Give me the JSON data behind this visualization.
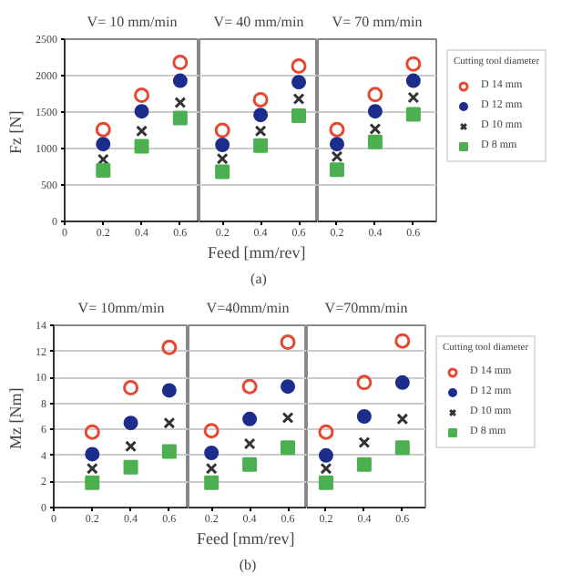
{
  "chart_data": [
    {
      "type": "scatter",
      "title": "V= 10 mm/min",
      "ylabel": "Fz  [N]",
      "grid": "y",
      "x": [
        0.2,
        0.4,
        0.6
      ],
      "xlim": [
        0,
        0.7
      ],
      "xticks": [
        0,
        0.2,
        0.4,
        0.6
      ],
      "ylim": [
        0,
        2500
      ],
      "yticks": [
        0,
        500,
        1000,
        1500,
        2000,
        2500
      ],
      "series": [
        {
          "color": "#e8472f",
          "marker": "circle_open",
          "values": [
            1260,
            1730,
            2180
          ]
        },
        {
          "color": "#1c2d8c",
          "marker": "circle",
          "values": [
            1060,
            1510,
            1930
          ]
        },
        {
          "color": "#333333",
          "marker": "cross",
          "values": [
            850,
            1240,
            1630
          ]
        },
        {
          "color": "#4caf50",
          "marker": "square",
          "values": [
            700,
            1030,
            1420
          ]
        }
      ]
    },
    {
      "type": "scatter",
      "title": "V= 40 mm/min",
      "xlabel": "Feed  [mm/rev]",
      "annotations": [
        "(a)"
      ],
      "grid": "y",
      "tick_labels": "x",
      "x": [
        0.2,
        0.4,
        0.6
      ],
      "xlim": [
        0.08,
        0.7
      ],
      "xticks": [
        0.2,
        0.4,
        0.6
      ],
      "ylim": [
        0,
        2500
      ],
      "yticks": [
        0,
        500,
        1000,
        1500,
        2000,
        2500
      ],
      "series": [
        {
          "color": "#e8472f",
          "marker": "circle_open",
          "values": [
            1250,
            1670,
            2130
          ]
        },
        {
          "color": "#1c2d8c",
          "marker": "circle",
          "values": [
            1050,
            1460,
            1910
          ]
        },
        {
          "color": "#333333",
          "marker": "cross",
          "values": [
            860,
            1240,
            1680
          ]
        },
        {
          "color": "#4caf50",
          "marker": "square",
          "values": [
            680,
            1040,
            1450
          ]
        }
      ]
    },
    {
      "type": "scatter",
      "title": "V= 70 mm/min",
      "legend_title": "Cutting tool diameter",
      "legend": "right",
      "grid": "y",
      "tick_labels": "x",
      "x": [
        0.2,
        0.4,
        0.6
      ],
      "xlim": [
        0.1,
        0.72
      ],
      "xticks": [
        0.2,
        0.4,
        0.6
      ],
      "ylim": [
        0,
        2500
      ],
      "yticks": [
        0,
        500,
        1000,
        1500,
        2000,
        2500
      ],
      "series": [
        {
          "name": "D 14 mm",
          "color": "#e8472f",
          "marker": "circle_open",
          "values": [
            1260,
            1740,
            2160
          ]
        },
        {
          "name": "D 12 mm",
          "color": "#1c2d8c",
          "marker": "circle",
          "values": [
            1060,
            1510,
            1930
          ]
        },
        {
          "name": "D 10 mm",
          "color": "#333333",
          "marker": "cross",
          "values": [
            890,
            1270,
            1700
          ]
        },
        {
          "name": "D 8 mm",
          "color": "#4caf50",
          "marker": "square",
          "values": [
            710,
            1090,
            1470
          ]
        }
      ]
    },
    {
      "type": "scatter",
      "title": "V= 10mm/min",
      "ylabel": "Mz  [Nm]",
      "grid": "y",
      "x": [
        0.2,
        0.4,
        0.6
      ],
      "xlim": [
        0,
        0.7
      ],
      "xticks": [
        0,
        0.2,
        0.4,
        0.6
      ],
      "ylim": [
        0,
        14
      ],
      "yticks": [
        0,
        2,
        4,
        6,
        8,
        10,
        12,
        14
      ],
      "series": [
        {
          "color": "#e8472f",
          "marker": "circle_open",
          "values": [
            5.8,
            9.2,
            12.3
          ]
        },
        {
          "color": "#1c2d8c",
          "marker": "circle",
          "values": [
            4.1,
            6.5,
            9.0
          ]
        },
        {
          "color": "#333333",
          "marker": "cross",
          "values": [
            3.0,
            4.7,
            6.5
          ]
        },
        {
          "color": "#4caf50",
          "marker": "square",
          "values": [
            1.9,
            3.1,
            4.3
          ]
        }
      ]
    },
    {
      "type": "scatter",
      "title": "V=40mm/min",
      "xlabel": "Feed  [mm/rev]",
      "annotations": [
        "(b)"
      ],
      "grid": "y",
      "tick_labels": "x",
      "x": [
        0.2,
        0.4,
        0.6
      ],
      "xlim": [
        0.08,
        0.7
      ],
      "xticks": [
        0.2,
        0.4,
        0.6
      ],
      "ylim": [
        0,
        14
      ],
      "yticks": [
        0,
        2,
        4,
        6,
        8,
        10,
        12,
        14
      ],
      "series": [
        {
          "color": "#e8472f",
          "marker": "circle_open",
          "values": [
            5.9,
            9.3,
            12.7
          ]
        },
        {
          "color": "#1c2d8c",
          "marker": "circle",
          "values": [
            4.2,
            6.8,
            9.3
          ]
        },
        {
          "color": "#333333",
          "marker": "cross",
          "values": [
            3.0,
            4.9,
            6.9
          ]
        },
        {
          "color": "#4caf50",
          "marker": "square",
          "values": [
            1.9,
            3.3,
            4.6
          ]
        }
      ]
    },
    {
      "type": "scatter",
      "title": "V=70mm/min",
      "legend_title": "Cutting tool diameter",
      "legend": "right",
      "grid": "y",
      "tick_labels": "x",
      "x": [
        0.2,
        0.4,
        0.6
      ],
      "xlim": [
        0.1,
        0.72
      ],
      "xticks": [
        0.2,
        0.4,
        0.6
      ],
      "ylim": [
        0,
        14
      ],
      "yticks": [
        0,
        2,
        4,
        6,
        8,
        10,
        12,
        14
      ],
      "series": [
        {
          "name": "D 14 mm",
          "color": "#e8472f",
          "marker": "circle_open",
          "values": [
            5.8,
            9.6,
            12.8
          ]
        },
        {
          "name": "D 12 mm",
          "color": "#1c2d8c",
          "marker": "circle",
          "values": [
            4.0,
            7.0,
            9.6
          ]
        },
        {
          "name": "D 10 mm",
          "color": "#333333",
          "marker": "cross",
          "values": [
            3.0,
            5.0,
            6.8
          ]
        },
        {
          "name": "D 8 mm",
          "color": "#4caf50",
          "marker": "square",
          "values": [
            1.9,
            3.3,
            4.6
          ]
        }
      ]
    }
  ]
}
